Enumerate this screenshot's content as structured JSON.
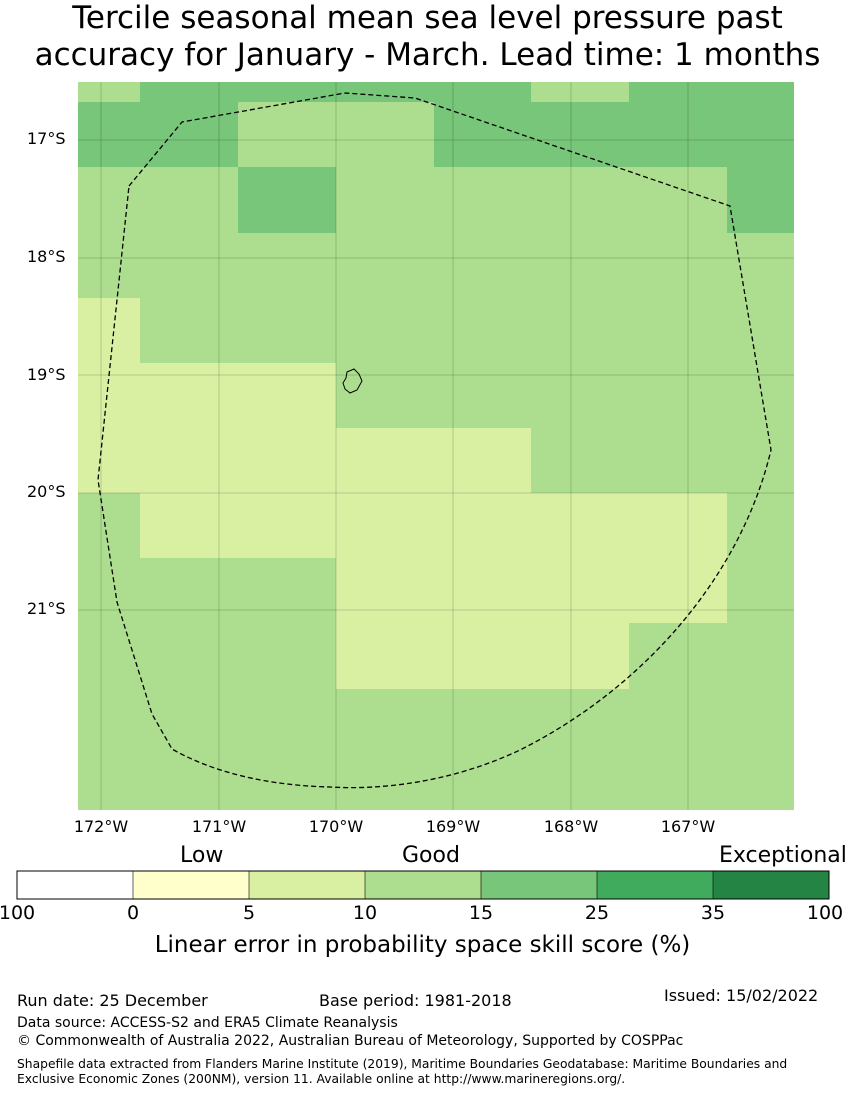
{
  "title_line1": "Tercile seasonal mean sea level pressure past",
  "title_line2": "accuracy for January - March. Lead time: 1 months",
  "lat_labels": [
    "17°S",
    "18°S",
    "19°S",
    "20°S",
    "21°S"
  ],
  "lon_labels": [
    "172°W",
    "171°W",
    "170°W",
    "169°W",
    "168°W",
    "167°W"
  ],
  "legend": {
    "categories": [
      "Low",
      "Good",
      "Exceptional"
    ],
    "bounds": [
      "100",
      "0",
      "5",
      "10",
      "15",
      "25",
      "35",
      "100"
    ],
    "colors": [
      "#ffffff",
      "#ffffcc",
      "#d9f0a3",
      "#addd8e",
      "#78c679",
      "#41ab5d",
      "#238443"
    ],
    "axis_title": "Linear error in probability space skill score (%)"
  },
  "footer": {
    "run_date": "Run date: 25 December",
    "base_period": "Base period: 1981-2018",
    "issued": "Issued: 15/02/2022",
    "data_source": "Data source: ACCESS-S2 and ERA5 Climate Reanalysis",
    "copyright": "© Commonwealth of Australia 2022, Australian Bureau of Meteorology, Supported by COSPPac",
    "shapefile": "Shapefile data extracted from Flanders Marine Institute (2019), Maritime Boundaries Geodatabase: Maritime Boundaries and Exclusive Economic Zones (200NM), version 11. Available online at http://www.marineregions.org/."
  }
}
